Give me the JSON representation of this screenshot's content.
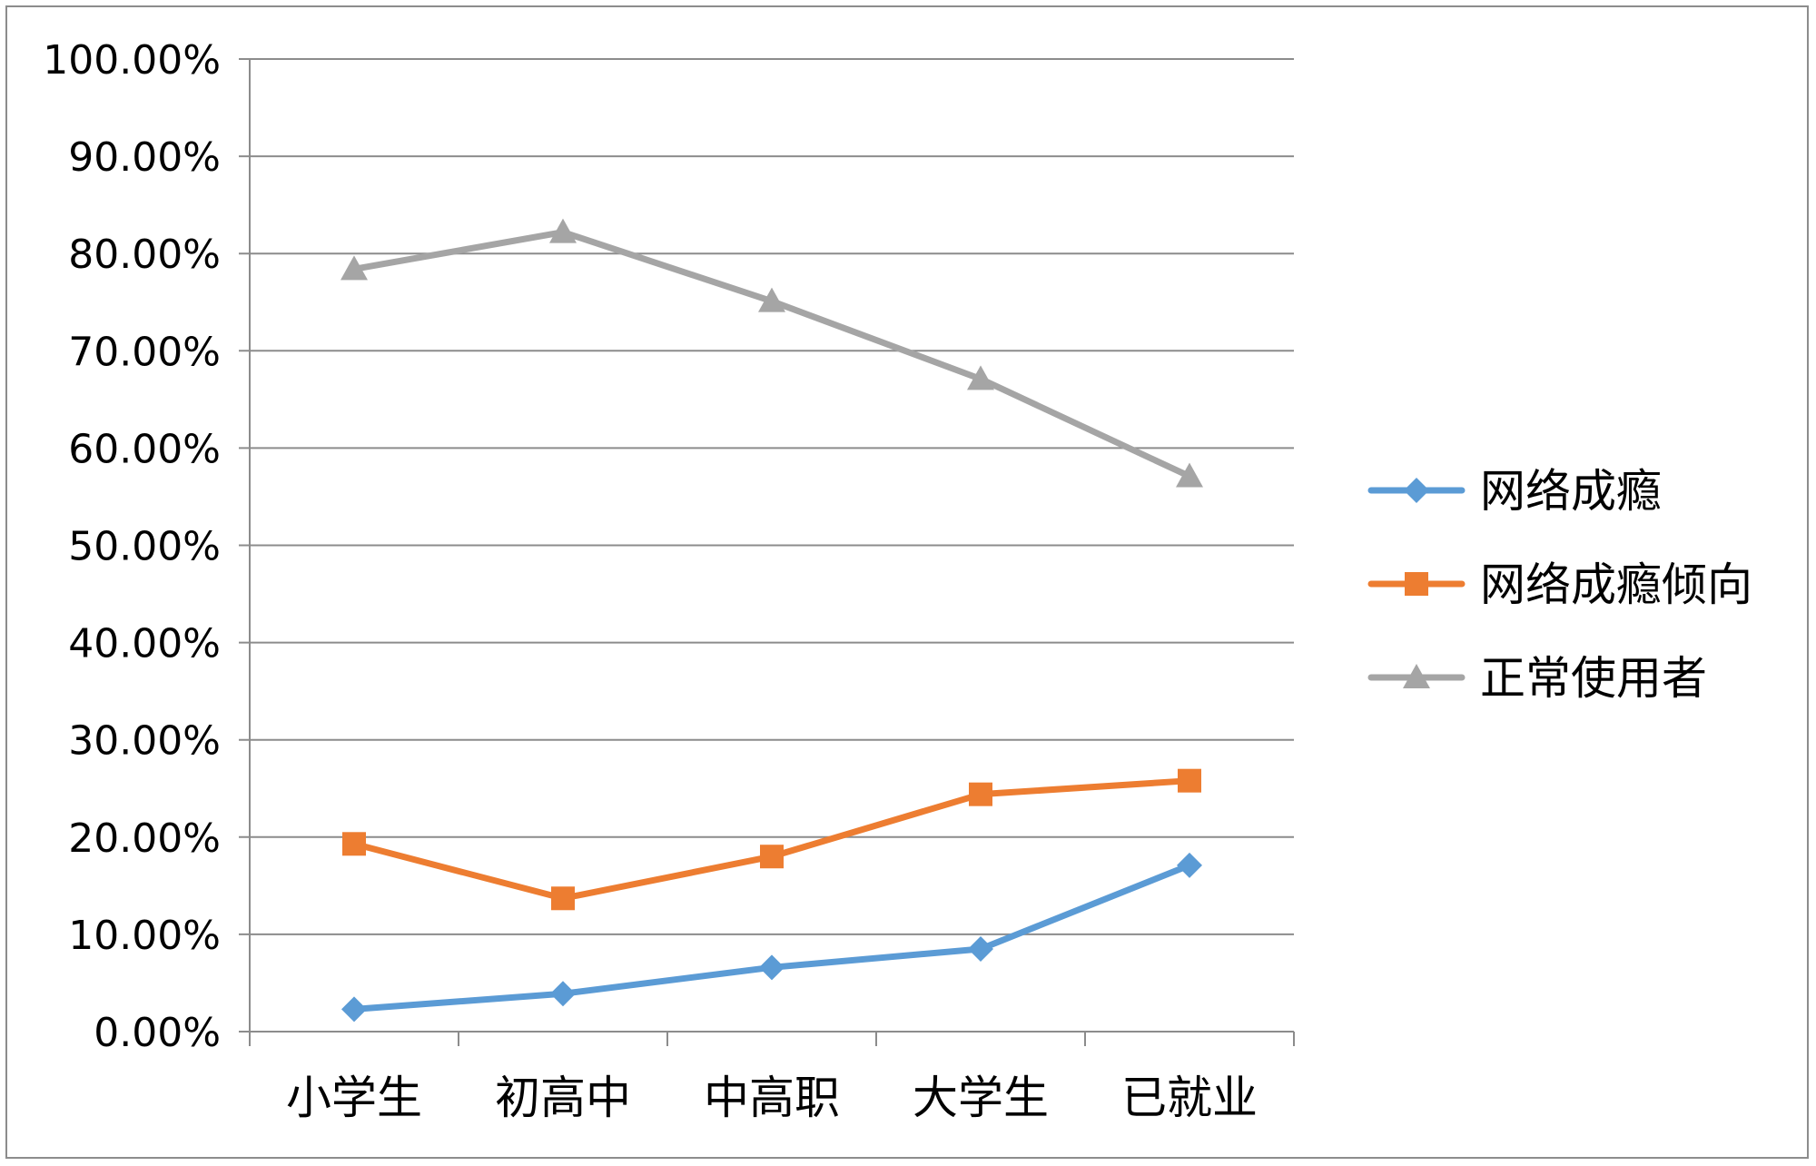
{
  "chart_data": {
    "type": "line",
    "title": "",
    "xlabel": "",
    "ylabel": "",
    "categories": [
      "小学生",
      "初高中",
      "中高职",
      "大学生",
      "已就业"
    ],
    "ylim": [
      0,
      1
    ],
    "yticks": [
      "0.00%",
      "10.00%",
      "20.00%",
      "30.00%",
      "40.00%",
      "50.00%",
      "60.00%",
      "70.00%",
      "80.00%",
      "90.00%",
      "100.00%"
    ],
    "grid": true,
    "legend_position": "right",
    "series": [
      {
        "name": "网络成瘾",
        "values": [
          0.023,
          0.039,
          0.066,
          0.085,
          0.171
        ],
        "color": "#5b9bd5",
        "marker": "diamond"
      },
      {
        "name": "网络成瘾倾向",
        "values": [
          0.193,
          0.137,
          0.18,
          0.244,
          0.258
        ],
        "color": "#ed7d31",
        "marker": "square"
      },
      {
        "name": "正常使用者",
        "values": [
          0.784,
          0.822,
          0.751,
          0.671,
          0.571
        ],
        "color": "#a5a5a5",
        "marker": "triangle"
      }
    ]
  }
}
